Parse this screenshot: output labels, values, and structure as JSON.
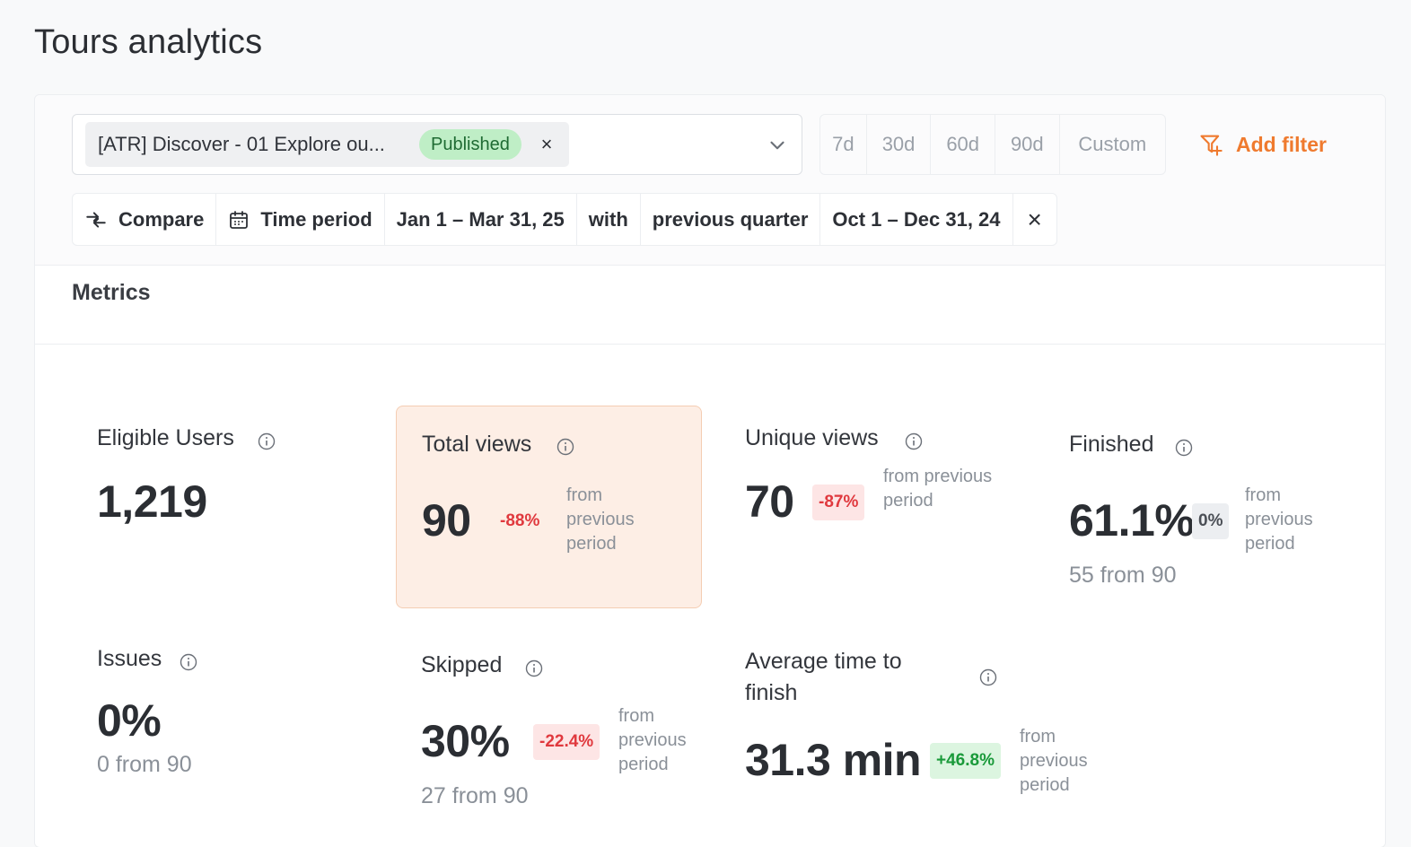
{
  "page": {
    "title": "Tours analytics"
  },
  "filters": {
    "tour_select": {
      "selected_label": "[ATR] Discover - 01 Explore ou...",
      "status": "Published",
      "remove_glyph": "×"
    },
    "ranges": [
      "7d",
      "30d",
      "60d",
      "90d",
      "Custom"
    ],
    "add_filter_label": "Add filter",
    "compare": {
      "compare_label": "Compare",
      "time_period_label": "Time period",
      "period": "Jan 1 – Mar 31, 25",
      "with_label": "with",
      "comparison": "previous quarter",
      "comparison_period": "Oct 1 – Dec 31, 24",
      "clear_glyph": "×"
    }
  },
  "metrics": {
    "title": "Metrics",
    "eligible_users": {
      "label": "Eligible Users",
      "value": "1,219"
    },
    "total_views": {
      "label": "Total views",
      "value": "90",
      "delta": "-88%",
      "note_lines": [
        "from",
        "previous",
        "period"
      ]
    },
    "unique_views": {
      "label": "Unique views",
      "value": "70",
      "delta": "-87%",
      "note_lines": [
        "from previous",
        "period"
      ]
    },
    "finished": {
      "label": "Finished",
      "value": "61.1%",
      "delta": "0%",
      "note_lines": [
        "from",
        "previous",
        "period"
      ],
      "sub": "55 from 90"
    },
    "issues": {
      "label": "Issues",
      "value": "0%",
      "sub": "0 from 90"
    },
    "skipped": {
      "label": "Skipped",
      "value": "30%",
      "delta": "-22.4%",
      "note_lines": [
        "from",
        "previous",
        "period"
      ],
      "sub": "27 from 90"
    },
    "avg_time": {
      "label_lines": [
        "Average time to",
        "finish"
      ],
      "value": "31.3 min",
      "delta": "+46.8%",
      "note_lines": [
        "from",
        "previous",
        "period"
      ]
    }
  },
  "colors": {
    "accent": "#ef7a2e",
    "published": "#bfeec6",
    "negative": "#e0393e",
    "positive": "#1a9a3a",
    "highlight": "#fdeee5"
  }
}
